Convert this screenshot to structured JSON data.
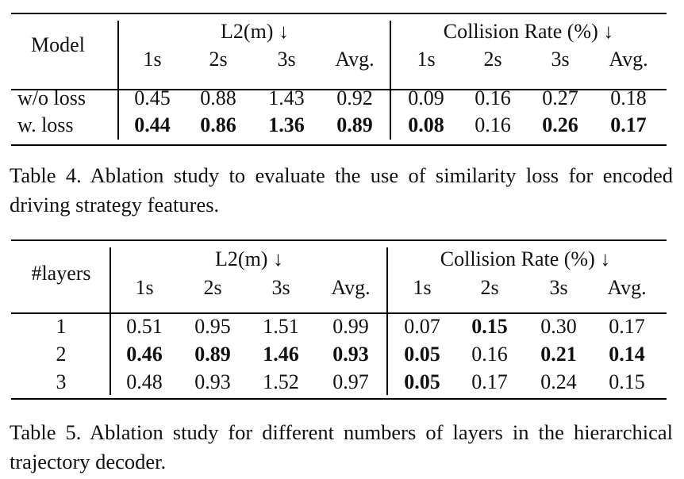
{
  "table4": {
    "header": {
      "model": "Model",
      "group1": "L2(m) ↓",
      "group2": "Collision Rate (%) ↓",
      "cols": [
        "1s",
        "2s",
        "3s",
        "Avg.",
        "1s",
        "2s",
        "3s",
        "Avg."
      ]
    },
    "rows": [
      {
        "label": "w/o loss",
        "values": [
          "0.45",
          "0.88",
          "1.43",
          "0.92",
          "0.09",
          "0.16",
          "0.27",
          "0.18"
        ]
      },
      {
        "label": "w. loss",
        "values": [
          "0.44",
          "0.86",
          "1.36",
          "0.89",
          "0.08",
          "0.16",
          "0.26",
          "0.17"
        ]
      }
    ],
    "caption": "Table 4. Ablation study to evaluate the use of similarity loss for encoded driving strategy features."
  },
  "table5": {
    "header": {
      "model": "#layers",
      "group1": "L2(m) ↓",
      "group2": "Collision Rate (%) ↓",
      "cols": [
        "1s",
        "2s",
        "3s",
        "Avg.",
        "1s",
        "2s",
        "3s",
        "Avg."
      ]
    },
    "rows": [
      {
        "label": "1",
        "values": [
          "0.51",
          "0.95",
          "1.51",
          "0.99",
          "0.07",
          "0.15",
          "0.30",
          "0.17"
        ]
      },
      {
        "label": "2",
        "values": [
          "0.46",
          "0.89",
          "1.46",
          "0.93",
          "0.05",
          "0.16",
          "0.21",
          "0.14"
        ]
      },
      {
        "label": "3",
        "values": [
          "0.48",
          "0.93",
          "1.52",
          "0.97",
          "0.05",
          "0.17",
          "0.24",
          "0.15"
        ]
      }
    ],
    "caption": "Table 5. Ablation study for different numbers of layers in the hierarchical trajectory decoder."
  }
}
